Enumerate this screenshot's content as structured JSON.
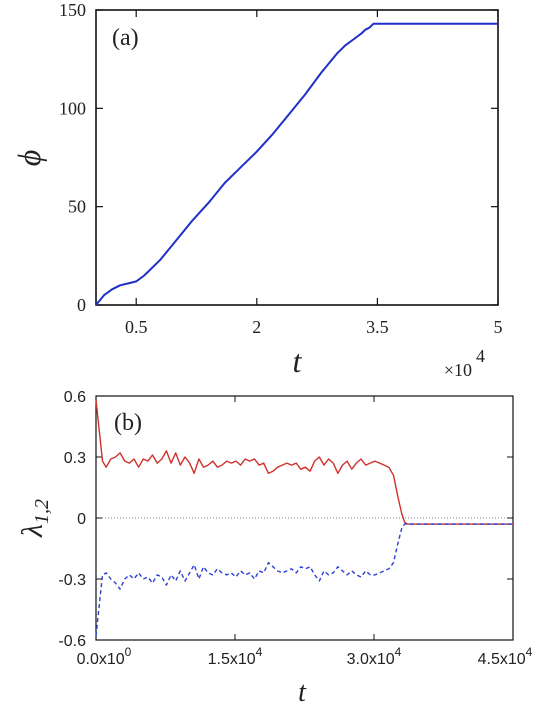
{
  "chart_data": [
    {
      "panel_label": "(a)",
      "type": "line",
      "xlabel": "t",
      "ylabel": "ϕ",
      "x_multiplier": "×10",
      "x_multiplier_exp": "4",
      "xlim": [
        0,
        5
      ],
      "ylim": [
        0,
        150
      ],
      "xticks": [
        0.5,
        2,
        3.5,
        5
      ],
      "xtick_labels": [
        "0.5",
        "2",
        "3.5",
        "5"
      ],
      "yticks": [
        0,
        50,
        100,
        150
      ],
      "ytick_labels": [
        "0",
        "50",
        "100",
        "150"
      ],
      "grid": false,
      "series": [
        {
          "color": "#1f2fc8",
          "x": [
            0.0,
            0.1,
            0.2,
            0.3,
            0.4,
            0.5,
            0.6,
            0.8,
            1.0,
            1.2,
            1.4,
            1.6,
            1.8,
            2.0,
            2.2,
            2.4,
            2.6,
            2.8,
            3.0,
            3.1,
            3.2,
            3.3,
            3.35,
            3.4,
            3.45,
            3.5,
            4.0,
            4.5,
            5.0
          ],
          "y": [
            0,
            5,
            8,
            10,
            11,
            12,
            15,
            23,
            33,
            43,
            52,
            62,
            70,
            78,
            87,
            97,
            107,
            118,
            128,
            132,
            135,
            138,
            140,
            141,
            143,
            143,
            143,
            143,
            143
          ]
        }
      ]
    },
    {
      "panel_label": "(b)",
      "type": "line",
      "xlabel": "t",
      "ylabel": "λ",
      "ylabel_sub": "1,2",
      "xlim": [
        0,
        45000
      ],
      "ylim": [
        -0.6,
        0.6
      ],
      "xticks": [
        0,
        15000,
        30000,
        45000
      ],
      "xtick_labels": [
        "0.0x10",
        "1.5x10",
        "3.0x10",
        "4.5x10"
      ],
      "xtick_exps": [
        "0",
        "4",
        "4",
        "4"
      ],
      "yticks": [
        -0.6,
        -0.3,
        0,
        0.3,
        0.6
      ],
      "ytick_labels": [
        "-0.6",
        "-0.3",
        "0",
        "0.3",
        "0.6"
      ],
      "zero_line": true,
      "grid": false,
      "series": [
        {
          "color": "#d0312d",
          "dash": "solid",
          "x": [
            0,
            300,
            700,
            1100,
            1600,
            2100,
            2600,
            3100,
            3600,
            4100,
            4600,
            5100,
            5600,
            6100,
            6600,
            7100,
            7600,
            8100,
            8600,
            9100,
            9600,
            10100,
            10600,
            11100,
            11600,
            12100,
            12600,
            13100,
            13600,
            14100,
            14600,
            15100,
            15600,
            16100,
            16600,
            17100,
            17600,
            18100,
            18600,
            19100,
            19600,
            20100,
            20600,
            21100,
            21600,
            22100,
            22600,
            23100,
            23600,
            24100,
            24600,
            25100,
            25600,
            26100,
            26600,
            27100,
            27600,
            28100,
            28600,
            29100,
            29600,
            30100,
            30600,
            31100,
            31600,
            32100,
            32600,
            33000,
            33300,
            33600,
            34000,
            36000,
            40000,
            45000
          ],
          "y": [
            0.58,
            0.45,
            0.28,
            0.25,
            0.29,
            0.3,
            0.32,
            0.28,
            0.27,
            0.29,
            0.25,
            0.29,
            0.28,
            0.31,
            0.27,
            0.29,
            0.33,
            0.27,
            0.32,
            0.26,
            0.3,
            0.27,
            0.22,
            0.29,
            0.25,
            0.26,
            0.28,
            0.25,
            0.26,
            0.28,
            0.27,
            0.28,
            0.26,
            0.29,
            0.28,
            0.29,
            0.26,
            0.27,
            0.22,
            0.23,
            0.25,
            0.26,
            0.27,
            0.26,
            0.27,
            0.24,
            0.25,
            0.23,
            0.28,
            0.3,
            0.26,
            0.29,
            0.27,
            0.22,
            0.26,
            0.28,
            0.24,
            0.27,
            0.29,
            0.26,
            0.27,
            0.28,
            0.27,
            0.26,
            0.25,
            0.21,
            0.1,
            0.02,
            -0.02,
            -0.03,
            -0.03,
            -0.03,
            -0.03,
            -0.03
          ]
        },
        {
          "color": "#2b3fd8",
          "dash": "dashed",
          "x": [
            0,
            300,
            700,
            1100,
            1600,
            2100,
            2600,
            3100,
            3600,
            4100,
            4600,
            5100,
            5600,
            6100,
            6600,
            7100,
            7600,
            8100,
            8600,
            9100,
            9600,
            10100,
            10600,
            11100,
            11600,
            12100,
            12600,
            13100,
            13600,
            14100,
            14600,
            15100,
            15600,
            16100,
            16600,
            17100,
            17600,
            18100,
            18600,
            19100,
            19600,
            20100,
            20600,
            21100,
            21600,
            22100,
            22600,
            23100,
            23600,
            24100,
            24600,
            25100,
            25600,
            26100,
            26600,
            27100,
            27600,
            28100,
            28600,
            29100,
            29600,
            30100,
            30600,
            31100,
            31600,
            32100,
            32600,
            33000,
            33300,
            33600,
            34000,
            36000,
            40000,
            45000
          ],
          "y": [
            -0.58,
            -0.45,
            -0.28,
            -0.27,
            -0.3,
            -0.32,
            -0.35,
            -0.3,
            -0.28,
            -0.3,
            -0.27,
            -0.3,
            -0.29,
            -0.32,
            -0.28,
            -0.29,
            -0.33,
            -0.28,
            -0.31,
            -0.26,
            -0.31,
            -0.27,
            -0.23,
            -0.3,
            -0.24,
            -0.27,
            -0.28,
            -0.25,
            -0.27,
            -0.28,
            -0.27,
            -0.29,
            -0.26,
            -0.28,
            -0.27,
            -0.3,
            -0.26,
            -0.27,
            -0.22,
            -0.24,
            -0.26,
            -0.27,
            -0.26,
            -0.25,
            -0.27,
            -0.24,
            -0.25,
            -0.24,
            -0.28,
            -0.31,
            -0.26,
            -0.28,
            -0.27,
            -0.24,
            -0.26,
            -0.28,
            -0.26,
            -0.28,
            -0.29,
            -0.26,
            -0.28,
            -0.28,
            -0.27,
            -0.26,
            -0.25,
            -0.22,
            -0.12,
            -0.05,
            -0.03,
            -0.03,
            -0.03,
            -0.03,
            -0.03,
            -0.03
          ]
        }
      ]
    }
  ]
}
